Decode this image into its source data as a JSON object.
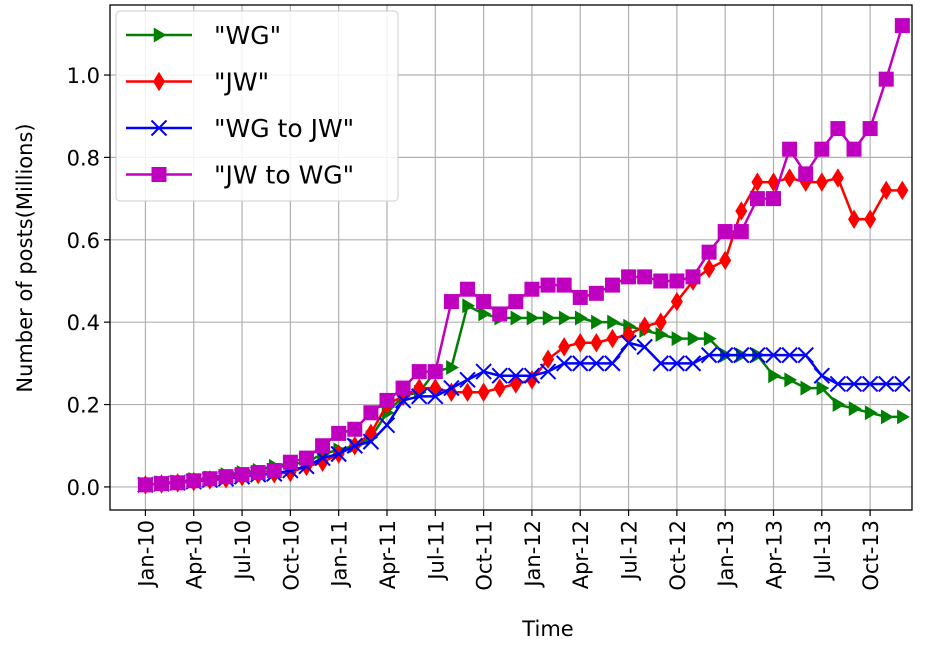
{
  "chart_data": {
    "type": "line",
    "x_label": "Time",
    "y_label": "Number of posts(Millions)",
    "categories": [
      "Jan-10",
      null,
      null,
      "Apr-10",
      null,
      null,
      "Jul-10",
      null,
      null,
      "Oct-10",
      null,
      null,
      "Jan-11",
      null,
      null,
      "Apr-11",
      null,
      null,
      "Jul-11",
      null,
      null,
      "Oct-11",
      null,
      null,
      "Jan-12",
      null,
      null,
      "Apr-12",
      null,
      null,
      "Jul-12",
      null,
      null,
      "Oct-12",
      null,
      null,
      "Jan-13",
      null,
      null,
      "Apr-13",
      null,
      null,
      "Jul-13",
      null,
      null,
      "Oct-13",
      null,
      null
    ],
    "series": [
      {
        "name": "\"WG\"",
        "color": "#008000",
        "marker": "triangle-right",
        "values": [
          0.005,
          0.01,
          0.012,
          0.018,
          0.022,
          0.03,
          0.035,
          0.04,
          0.05,
          0.055,
          0.06,
          0.08,
          0.09,
          0.1,
          0.12,
          0.18,
          0.22,
          0.23,
          0.28,
          0.29,
          0.44,
          0.42,
          0.41,
          0.41,
          0.41,
          0.41,
          0.41,
          0.41,
          0.4,
          0.4,
          0.39,
          0.38,
          0.37,
          0.36,
          0.36,
          0.36,
          0.32,
          0.32,
          0.32,
          0.27,
          0.26,
          0.24,
          0.24,
          0.2,
          0.19,
          0.18,
          0.17,
          0.17
        ]
      },
      {
        "name": "\"JW\"",
        "color": "#ff0000",
        "marker": "diamond",
        "values": [
          0.005,
          0.007,
          0.01,
          0.013,
          0.017,
          0.02,
          0.025,
          0.03,
          0.032,
          0.035,
          0.05,
          0.06,
          0.08,
          0.1,
          0.13,
          0.2,
          0.22,
          0.24,
          0.24,
          0.23,
          0.23,
          0.23,
          0.24,
          0.25,
          0.26,
          0.31,
          0.34,
          0.35,
          0.35,
          0.36,
          0.37,
          0.39,
          0.4,
          0.45,
          0.5,
          0.53,
          0.55,
          0.67,
          0.74,
          0.74,
          0.75,
          0.74,
          0.74,
          0.75,
          0.65,
          0.65,
          0.72,
          0.72
        ]
      },
      {
        "name": "\"WG to JW\"",
        "color": "#0000ff",
        "marker": "x",
        "values": [
          0.005,
          0.008,
          0.01,
          0.013,
          0.017,
          0.02,
          0.025,
          0.03,
          0.032,
          0.04,
          0.05,
          0.07,
          0.08,
          0.1,
          0.11,
          0.15,
          0.21,
          0.22,
          0.22,
          0.24,
          0.26,
          0.28,
          0.27,
          0.27,
          0.27,
          0.28,
          0.3,
          0.3,
          0.3,
          0.3,
          0.35,
          0.34,
          0.3,
          0.3,
          0.3,
          0.32,
          0.32,
          0.32,
          0.32,
          0.32,
          0.32,
          0.32,
          0.27,
          0.25,
          0.25,
          0.25,
          0.25,
          0.25
        ]
      },
      {
        "name": "\"JW to WG\"",
        "color": "#bf00bf",
        "marker": "square",
        "values": [
          0.005,
          0.008,
          0.01,
          0.015,
          0.02,
          0.025,
          0.03,
          0.035,
          0.04,
          0.06,
          0.07,
          0.1,
          0.13,
          0.14,
          0.18,
          0.21,
          0.24,
          0.28,
          0.28,
          0.45,
          0.48,
          0.45,
          0.42,
          0.45,
          0.48,
          0.49,
          0.49,
          0.46,
          0.47,
          0.49,
          0.51,
          0.51,
          0.5,
          0.5,
          0.51,
          0.57,
          0.62,
          0.62,
          0.7,
          0.7,
          0.82,
          0.76,
          0.82,
          0.87,
          0.82,
          0.87,
          0.99,
          1.12
        ]
      }
    ],
    "xlim": [
      -2.2,
      47.6
    ],
    "ylim": [
      -0.056,
      1.17
    ],
    "yticks": [
      {
        "value": 0,
        "label": "0.0"
      },
      0.2,
      0.4,
      0.6,
      0.8,
      {
        "value": 1,
        "label": "1.0"
      }
    ],
    "grid": true,
    "legend": "upper left"
  }
}
